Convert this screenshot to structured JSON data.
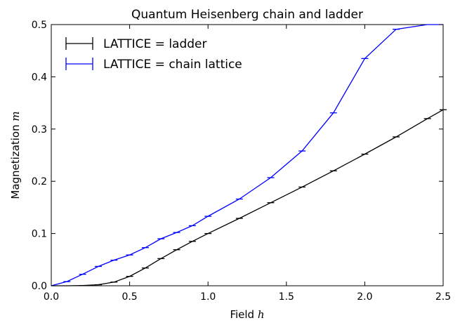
{
  "chart_data": {
    "type": "line",
    "title": "Quantum Heisenberg chain and ladder",
    "xlabel": "Field",
    "xlabel_symbol": "h",
    "ylabel": "Magnetization",
    "ylabel_symbol": "m",
    "xlim": [
      0,
      2.5
    ],
    "ylim": [
      0,
      0.5
    ],
    "xticks": [
      "0.0",
      "0.5",
      "1.0",
      "1.5",
      "2.0",
      "2.5"
    ],
    "yticks": [
      "0.0",
      "0.1",
      "0.2",
      "0.3",
      "0.4",
      "0.5"
    ],
    "legend_position": "top-left",
    "grid": false,
    "series": [
      {
        "name": "LATTICE = ladder",
        "color": "#000000",
        "x": [
          0.0,
          0.1,
          0.2,
          0.3,
          0.4,
          0.5,
          0.6,
          0.7,
          0.8,
          0.9,
          1.0,
          1.2,
          1.4,
          1.6,
          1.8,
          2.0,
          2.2,
          2.4,
          2.5
        ],
        "y": [
          0.0,
          0.0,
          0.0005,
          0.002,
          0.007,
          0.018,
          0.034,
          0.052,
          0.069,
          0.085,
          0.1,
          0.129,
          0.159,
          0.189,
          0.22,
          0.252,
          0.285,
          0.32,
          0.337
        ]
      },
      {
        "name": "LATTICE = chain lattice",
        "color": "#0000ff",
        "x": [
          0.0,
          0.1,
          0.2,
          0.3,
          0.4,
          0.5,
          0.6,
          0.7,
          0.8,
          0.9,
          1.0,
          1.2,
          1.4,
          1.6,
          1.8,
          2.0,
          2.2,
          2.4,
          2.5
        ],
        "y": [
          0.0,
          0.008,
          0.022,
          0.037,
          0.049,
          0.059,
          0.073,
          0.09,
          0.102,
          0.115,
          0.133,
          0.166,
          0.207,
          0.258,
          0.331,
          0.435,
          0.491,
          0.5,
          0.5
        ]
      }
    ]
  }
}
